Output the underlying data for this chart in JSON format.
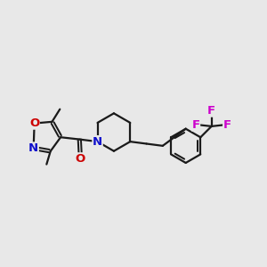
{
  "bg_color": "#e8e8e8",
  "bond_color": "#1a1a1a",
  "N_color": "#1010cc",
  "O_color": "#cc0000",
  "F_color": "#cc00cc",
  "lw": 1.6,
  "figsize": [
    3.0,
    3.0
  ],
  "dpi": 100,
  "xlim": [
    0.5,
    10.5
  ],
  "ylim": [
    2.5,
    8.5
  ]
}
